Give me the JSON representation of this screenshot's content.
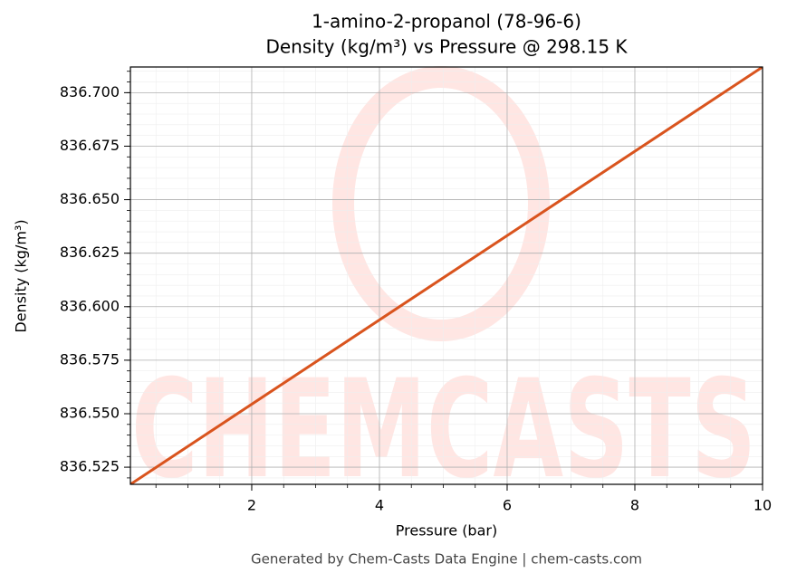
{
  "chart_data": {
    "type": "line",
    "title": "1-amino-2-propanol (78-96-6)",
    "subtitle": "Density (kg/m³) vs Pressure @ 298.15 K",
    "x_label": "Pressure (bar)",
    "y_label": "Density (kg/m³)",
    "footer": "Generated by Chem-Casts Data Engine | chem-casts.com",
    "watermark": "CHEMCASTS",
    "x": [
      0.1,
      10
    ],
    "series": [
      {
        "name": "Density",
        "color": "#d9541e",
        "values": [
          836.517,
          836.712
        ]
      }
    ],
    "xlim": [
      0.1,
      10
    ],
    "xticks": [
      2,
      4,
      6,
      8,
      10
    ],
    "ylim": [
      836.517,
      836.712
    ],
    "yticks": [
      {
        "value": 836.525,
        "label": "836.525"
      },
      {
        "value": 836.55,
        "label": "836.550"
      },
      {
        "value": 836.575,
        "label": "836.575"
      },
      {
        "value": 836.6,
        "label": "836.600"
      },
      {
        "value": 836.625,
        "label": "836.625"
      },
      {
        "value": 836.65,
        "label": "836.650"
      },
      {
        "value": 836.675,
        "label": "836.675"
      },
      {
        "value": 836.7,
        "label": "836.700"
      }
    ],
    "grid": true
  }
}
